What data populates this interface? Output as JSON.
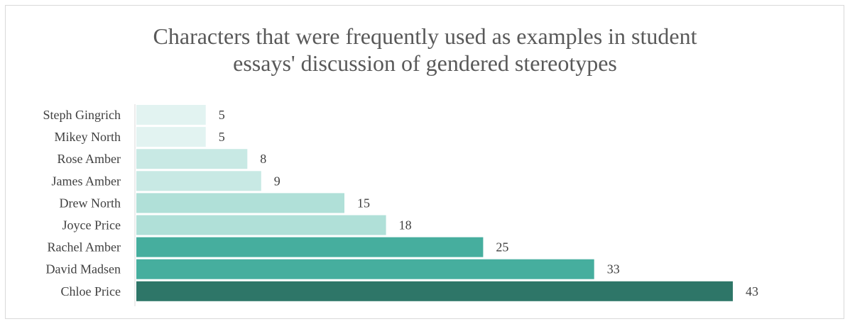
{
  "chart_data": {
    "type": "bar",
    "orientation": "horizontal",
    "title_lines": [
      "Characters that were frequently used as examples in student",
      "essays' discussion of gendered stereotypes"
    ],
    "categories": [
      "Steph Gingrich",
      "Mikey North",
      "Rose Amber",
      "James Amber",
      "Drew North",
      "Joyce Price",
      "Rachel Amber",
      "David Madsen",
      "Chloe Price"
    ],
    "values": [
      5,
      5,
      8,
      9,
      15,
      18,
      25,
      33,
      43
    ],
    "colors": [
      "#e2f3f1",
      "#e2f3f1",
      "#c8e9e4",
      "#c8e9e4",
      "#b0e0d8",
      "#b0e0d8",
      "#46ae9e",
      "#46ae9e",
      "#2e7668"
    ],
    "xlim": [
      0,
      43
    ],
    "grid": false,
    "legend": "none"
  }
}
